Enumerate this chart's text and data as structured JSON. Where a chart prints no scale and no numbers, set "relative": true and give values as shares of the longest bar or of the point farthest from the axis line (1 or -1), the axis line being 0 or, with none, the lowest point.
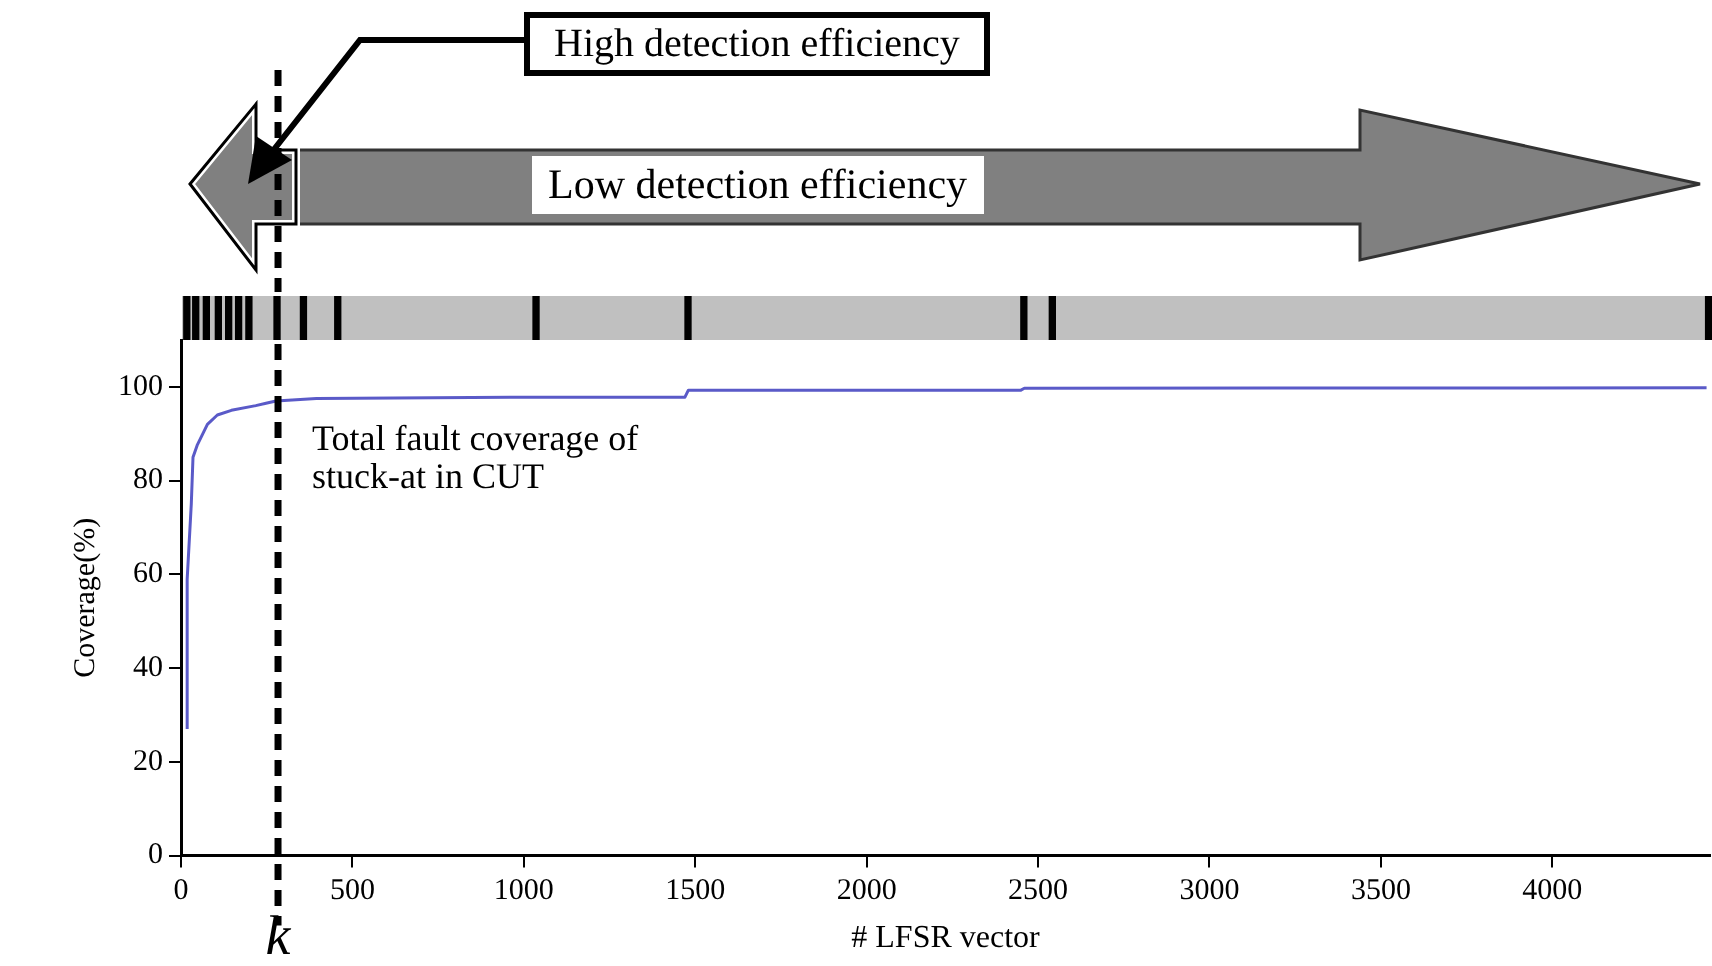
{
  "chart_data": [
    {
      "type": "bar",
      "relative": true,
      "color": "#000000",
      "xlim": [
        0,
        4460
      ],
      "tick_labels": false,
      "x": [
        14,
        40,
        71,
        106,
        136,
        165,
        195,
        277,
        354,
        454,
        1032,
        1475,
        2454,
        2537,
        4450
      ],
      "values": [
        1,
        1,
        1,
        1,
        1,
        1,
        1,
        1,
        1,
        1,
        1,
        1,
        1,
        1,
        1
      ]
    },
    {
      "type": "line",
      "xlabel": "# LFSR vector",
      "ylabel": "Coverage(%)",
      "annotations": [
        "High detection efficiency",
        "Low detection efficiency",
        "Total fault coverage of stuck-at in CUT"
      ],
      "xlim": [
        0,
        4460
      ],
      "ylim": [
        0,
        110
      ],
      "xticks": [
        0,
        500,
        1000,
        1500,
        2000,
        2500,
        3000,
        3500,
        4000
      ],
      "yticks": [
        0,
        20,
        40,
        60,
        80,
        100
      ],
      "series": [
        {
          "color": "#5a5ac8",
          "x": [
            18,
            18,
            30,
            35,
            47,
            77,
            106,
            147,
            218,
            248,
            277,
            395,
            1040,
            1470,
            1480,
            2450,
            2460,
            4450
          ],
          "values": [
            27,
            59,
            75,
            85,
            87.5,
            92,
            94,
            95,
            96,
            96.5,
            97,
            97.5,
            97.8,
            97.8,
            99.3,
            99.3,
            99.7,
            99.8
          ]
        }
      ],
      "ref_lines": [
        {
          "axis": "x",
          "value": 283,
          "label": "k",
          "line_style": "dashed",
          "color": "#000000"
        }
      ]
    }
  ]
}
